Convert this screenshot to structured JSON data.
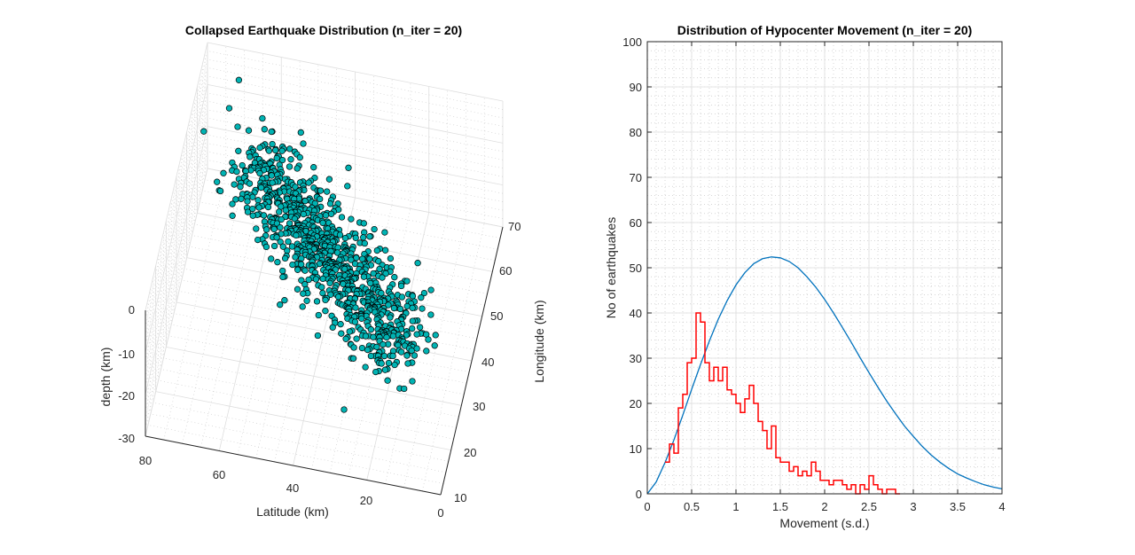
{
  "chart_data": [
    {
      "type": "scatter3d",
      "title": "Collapsed Earthquake Distribution (n_iter = 20)",
      "xlabel": "Latitude (km)",
      "ylabel": "Longitude (km)",
      "zlabel": "depth (km)",
      "xlim": [
        0,
        80
      ],
      "ylim": [
        10,
        70
      ],
      "zlim": [
        -30,
        0
      ],
      "xticks": [
        "0",
        "20",
        "40",
        "60",
        "80"
      ],
      "yticks": [
        "10",
        "20",
        "30",
        "40",
        "50",
        "60",
        "70"
      ],
      "zticks": [
        "-30",
        "-20",
        "-10",
        "0"
      ],
      "marker_color": "#00b3b3",
      "marker_edge": "#000000",
      "approx_point_count": 950,
      "grid": true
    },
    {
      "type": "line",
      "title": "Distribution of Hypocenter Movement (n_iter = 20)",
      "xlabel": "Movement (s.d.)",
      "ylabel": "No of earthquakes",
      "xlim": [
        0,
        4
      ],
      "ylim": [
        0,
        100
      ],
      "xticks": [
        "0",
        "0.5",
        "1",
        "1.5",
        "2",
        "2.5",
        "3",
        "3.5",
        "4"
      ],
      "yticks": [
        "0",
        "10",
        "20",
        "30",
        "40",
        "50",
        "60",
        "70",
        "80",
        "90",
        "100"
      ],
      "grid": true,
      "minor_grid": true,
      "series": [
        {
          "style": "stairs",
          "color": "#ff0000",
          "bin_width": 0.05,
          "x_start": 0.2,
          "values": [
            7,
            11,
            9,
            19,
            22,
            29,
            30,
            40,
            38,
            29,
            25,
            28,
            25,
            28,
            23,
            22,
            20,
            18,
            21,
            24,
            20,
            16,
            14,
            10,
            15,
            8,
            7,
            7,
            5,
            6,
            4,
            5,
            4,
            7,
            5,
            3,
            3,
            2,
            3,
            3,
            2,
            1,
            2,
            0,
            2,
            1,
            4,
            2,
            1,
            0,
            1,
            1,
            0
          ]
        },
        {
          "style": "curve",
          "color": "#0072bd",
          "samples_x": [
            0,
            0.1,
            0.2,
            0.3,
            0.4,
            0.5,
            0.6,
            0.7,
            0.8,
            0.9,
            1.0,
            1.1,
            1.2,
            1.3,
            1.4,
            1.5,
            1.6,
            1.7,
            1.8,
            1.9,
            2.0,
            2.1,
            2.2,
            2.3,
            2.4,
            2.5,
            2.6,
            2.7,
            2.8,
            2.9,
            3.0,
            3.1,
            3.2,
            3.3,
            3.4,
            3.5,
            3.6,
            3.7,
            3.8,
            3.9,
            4.0
          ],
          "samples_y": [
            0,
            2.6,
            6.9,
            11.9,
            17.4,
            23.1,
            28.6,
            33.8,
            38.6,
            42.7,
            46.2,
            48.9,
            50.9,
            52.0,
            52.4,
            52.2,
            51.4,
            50.0,
            48.0,
            45.7,
            43.0,
            40.0,
            36.8,
            33.5,
            30.1,
            26.8,
            23.6,
            20.5,
            17.7,
            15.0,
            12.7,
            10.5,
            8.6,
            7.0,
            5.6,
            4.4,
            3.5,
            2.7,
            2.0,
            1.5,
            1.1
          ]
        }
      ]
    }
  ]
}
